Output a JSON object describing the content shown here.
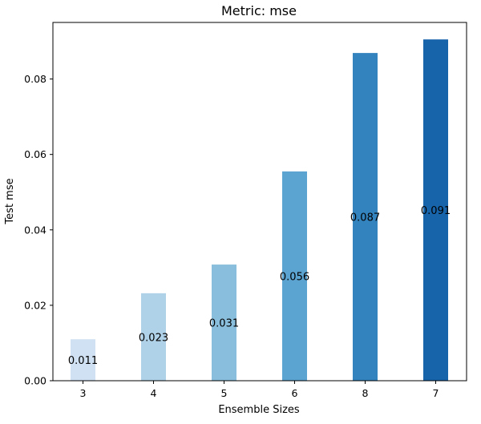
{
  "chart_data": {
    "type": "bar",
    "title": "Metric: mse",
    "xlabel": "Ensemble Sizes",
    "ylabel": "Test mse",
    "categories": [
      "3",
      "4",
      "5",
      "6",
      "8",
      "7"
    ],
    "values": [
      0.011,
      0.0232,
      0.0308,
      0.0555,
      0.0869,
      0.0905
    ],
    "data_labels": [
      "0.011",
      "0.023",
      "0.031",
      "0.056",
      "0.087",
      "0.091"
    ],
    "colors": [
      "#cfe1f2",
      "#b0d2e8",
      "#89bedc",
      "#5ba3d0",
      "#3383be",
      "#1764ab"
    ],
    "ylim": [
      0,
      0.095
    ],
    "yticks": [
      0.0,
      0.02,
      0.04,
      0.06,
      0.08
    ],
    "ytick_labels": [
      "0.00",
      "0.02",
      "0.04",
      "0.06",
      "0.08"
    ],
    "grid": false,
    "legend": "none"
  }
}
